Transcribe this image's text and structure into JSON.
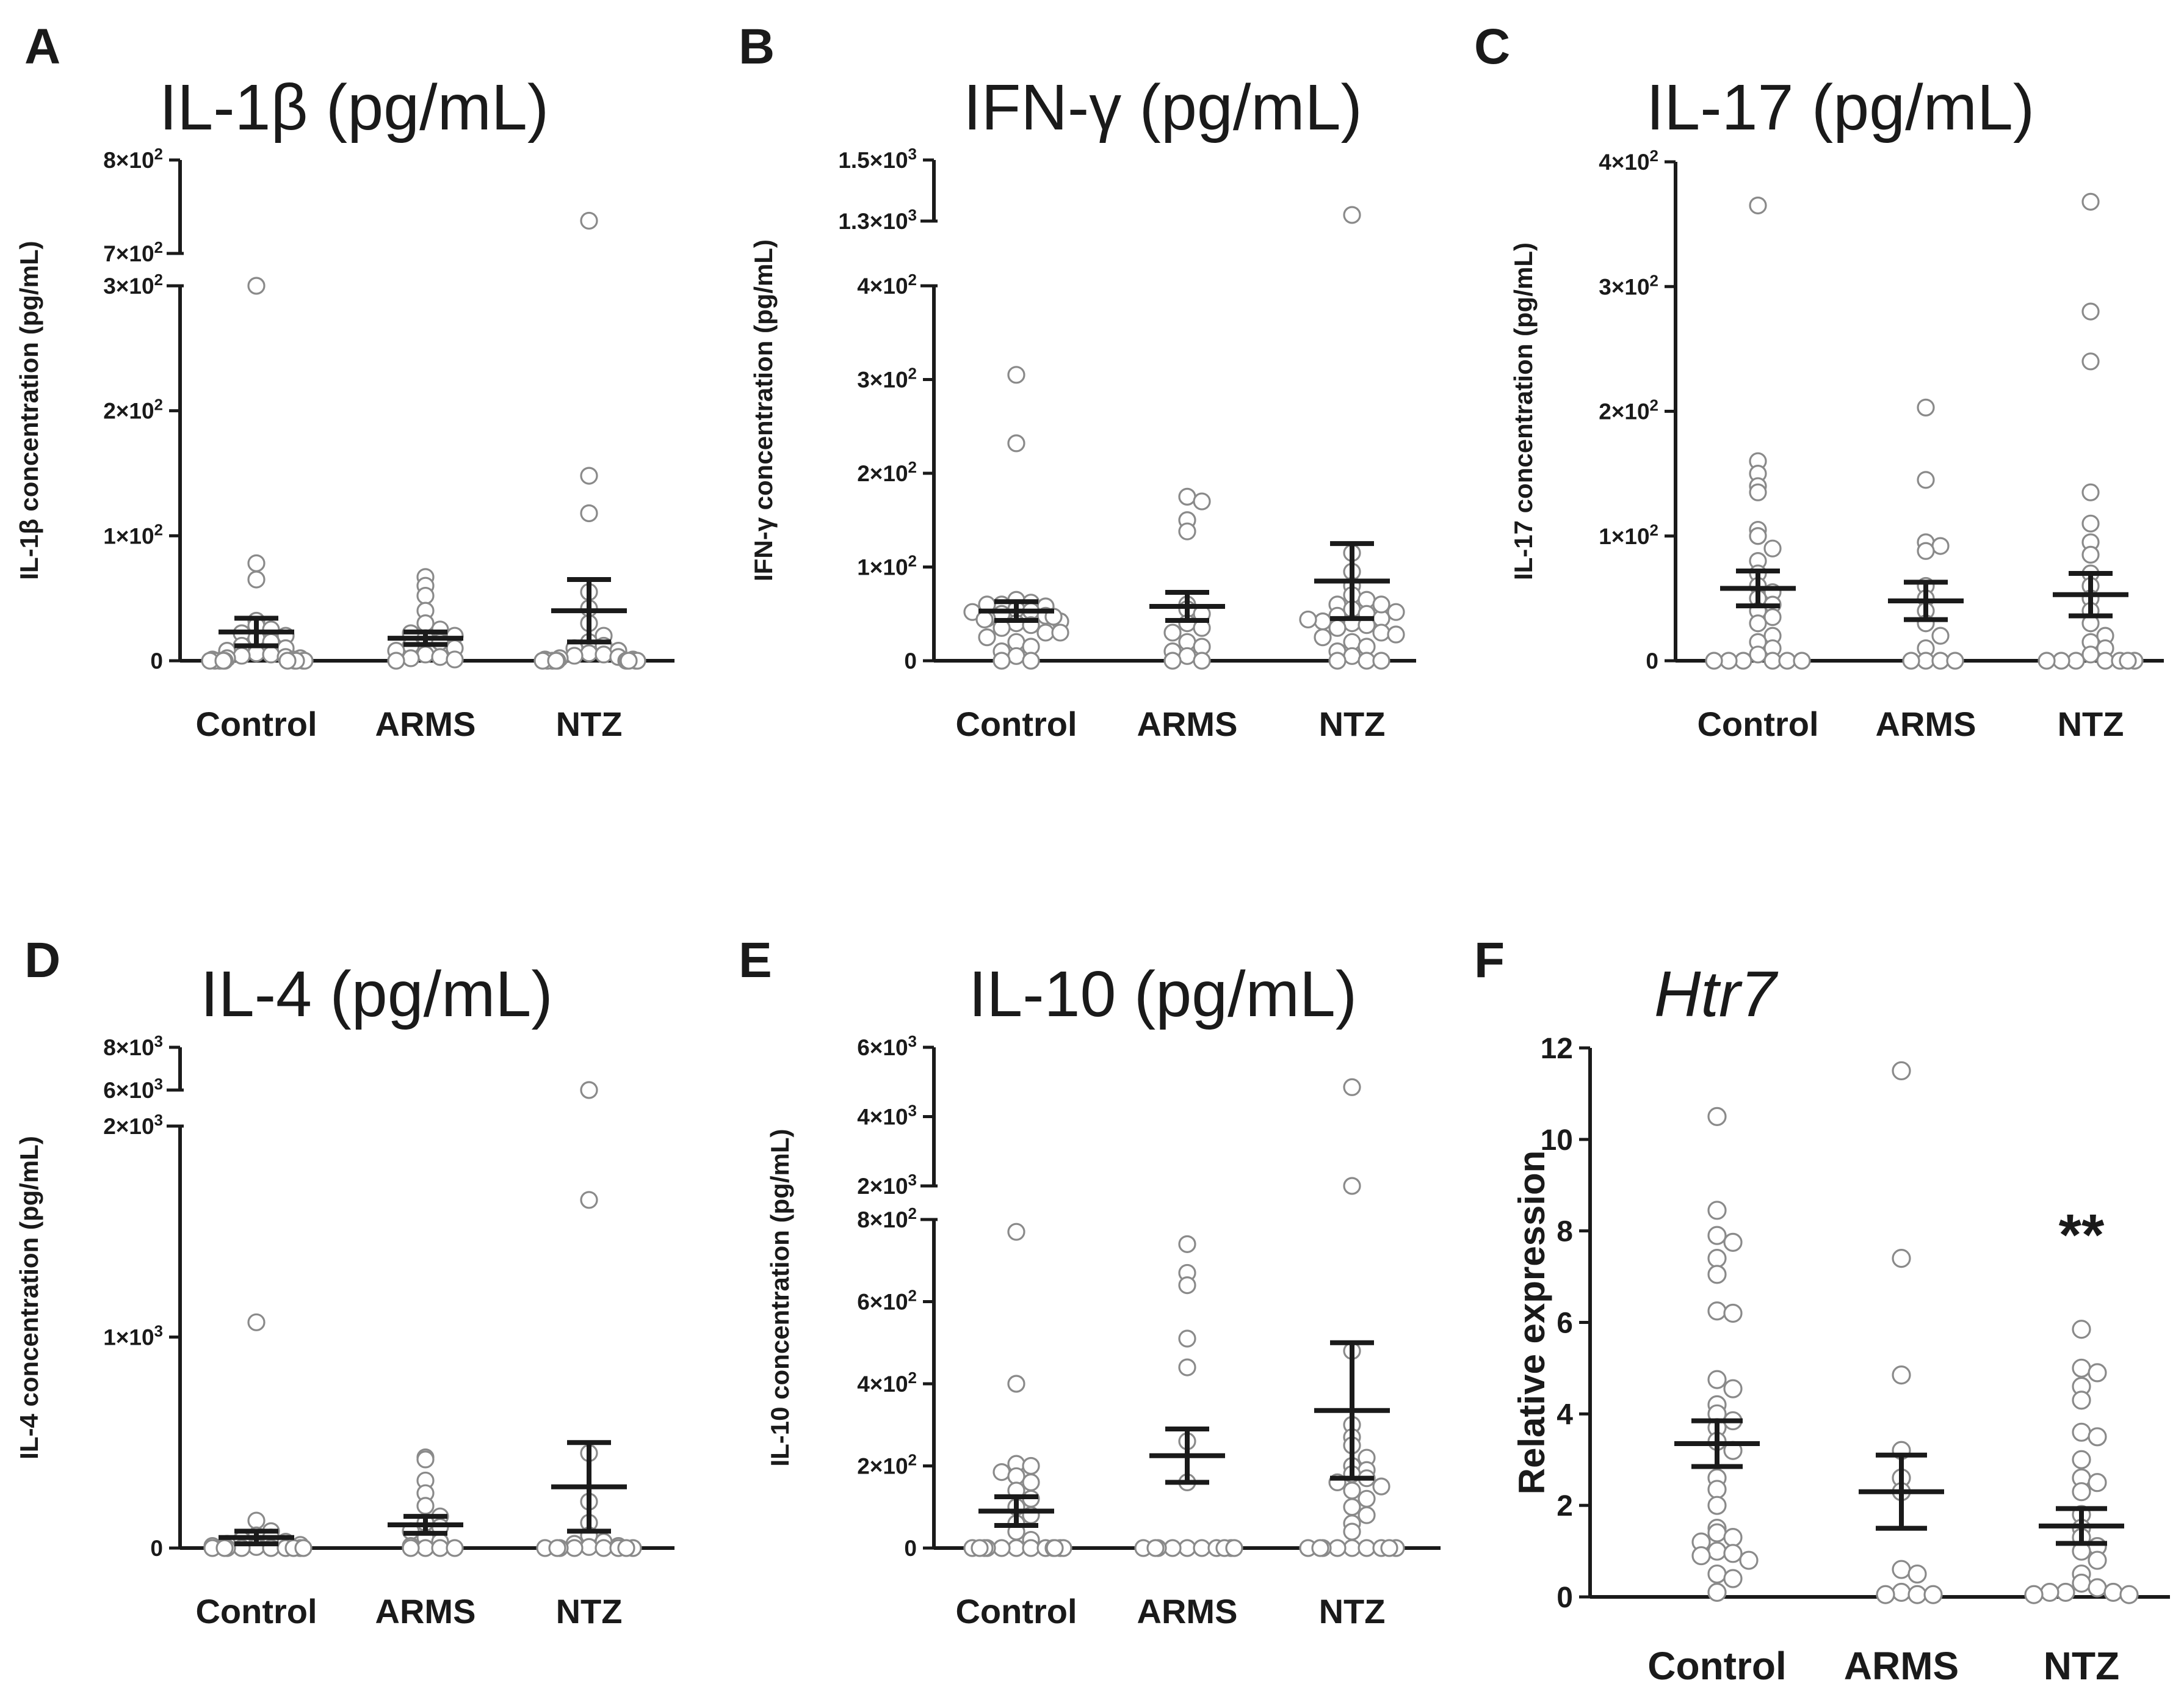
{
  "chart_data": [
    {
      "panel": "A",
      "title": "IL-1β (pg/mL)",
      "type": "scatter",
      "ylabel": "IL-1β concentration (pg/mL)",
      "categories": [
        "Control",
        "ARMS",
        "NTZ"
      ],
      "broken_axis": {
        "lower": [
          0,
          300
        ],
        "upper": [
          700,
          800
        ]
      },
      "yticks": [
        {
          "v": 0,
          "label": "0"
        },
        {
          "v": 100,
          "label": "1×10²"
        },
        {
          "v": 200,
          "label": "2×10²"
        },
        {
          "v": 300,
          "label": "3×10²"
        },
        {
          "v": 700,
          "label": "7×10²"
        },
        {
          "v": 800,
          "label": "8×10²"
        }
      ],
      "series": [
        {
          "name": "Control",
          "mean": 23,
          "sem": 11,
          "values": [
            300,
            78,
            65,
            32,
            28,
            25,
            22,
            20,
            18,
            15,
            12,
            10,
            8,
            6,
            5,
            4,
            3,
            2,
            2,
            1,
            1,
            0,
            0,
            0,
            0,
            0,
            0,
            0,
            0,
            0,
            0
          ]
        },
        {
          "name": "ARMS",
          "mean": 18,
          "sem": 5,
          "values": [
            67,
            60,
            52,
            40,
            30,
            25,
            22,
            20,
            18,
            15,
            12,
            10,
            8,
            5,
            3,
            2,
            1,
            0
          ]
        },
        {
          "name": "NTZ",
          "mean": 40,
          "sem": 25,
          "values": [
            735,
            148,
            118,
            55,
            42,
            30,
            20,
            15,
            12,
            10,
            8,
            6,
            5,
            4,
            3,
            2,
            1,
            1,
            0,
            0,
            0,
            0,
            0,
            0,
            0,
            0,
            0,
            0
          ]
        }
      ]
    },
    {
      "panel": "B",
      "title": "IFN-γ (pg/mL)",
      "type": "scatter",
      "ylabel": "IFN-γ concentration (pg/mL)",
      "categories": [
        "Control",
        "ARMS",
        "NTZ"
      ],
      "broken_axis": {
        "lower": [
          0,
          400
        ],
        "upper": [
          1300,
          1500
        ]
      },
      "yticks": [
        {
          "v": 0,
          "label": "0"
        },
        {
          "v": 100,
          "label": "1×10²"
        },
        {
          "v": 200,
          "label": "2×10²"
        },
        {
          "v": 300,
          "label": "3×10²"
        },
        {
          "v": 400,
          "label": "4×10²"
        },
        {
          "v": 1300,
          "label": "1.3×10³"
        },
        {
          "v": 1500,
          "label": "1.5×10³"
        }
      ],
      "series": [
        {
          "name": "Control",
          "mean": 53,
          "sem": 10,
          "values": [
            305,
            232,
            65,
            62,
            60,
            58,
            55,
            53,
            50,
            48,
            45,
            42,
            40,
            38,
            35,
            30,
            25,
            20,
            15,
            10,
            5,
            0,
            0,
            60,
            52,
            47,
            44,
            30
          ]
        },
        {
          "name": "ARMS",
          "mean": 58,
          "sem": 15,
          "values": [
            175,
            170,
            150,
            138,
            60,
            55,
            50,
            40,
            35,
            30,
            20,
            15,
            10,
            5,
            0,
            0
          ]
        },
        {
          "name": "NTZ",
          "mean": 85,
          "sem": 40,
          "values": [
            1320,
            115,
            95,
            80,
            70,
            65,
            60,
            55,
            50,
            48,
            45,
            42,
            40,
            38,
            35,
            30,
            25,
            20,
            15,
            10,
            5,
            0,
            0,
            0,
            60,
            52,
            44,
            28
          ]
        }
      ]
    },
    {
      "panel": "C",
      "title": "IL-17 (pg/mL)",
      "type": "scatter",
      "ylabel": "IL-17 concentration (pg/mL)",
      "categories": [
        "Control",
        "ARMS",
        "NTZ"
      ],
      "ylim": [
        0,
        400
      ],
      "yticks": [
        {
          "v": 0,
          "label": "0"
        },
        {
          "v": 100,
          "label": "1×10²"
        },
        {
          "v": 200,
          "label": "2×10²"
        },
        {
          "v": 300,
          "label": "3×10²"
        },
        {
          "v": 400,
          "label": "4×10²"
        }
      ],
      "series": [
        {
          "name": "Control",
          "mean": 58,
          "sem": 14,
          "values": [
            365,
            160,
            150,
            140,
            135,
            105,
            100,
            90,
            80,
            70,
            60,
            55,
            50,
            45,
            40,
            35,
            30,
            20,
            15,
            10,
            5,
            0,
            0,
            0,
            0,
            0,
            0
          ]
        },
        {
          "name": "ARMS",
          "mean": 48,
          "sem": 15,
          "values": [
            203,
            145,
            95,
            92,
            88,
            60,
            50,
            40,
            30,
            20,
            10,
            0,
            0,
            0,
            0
          ]
        },
        {
          "name": "NTZ",
          "mean": 53,
          "sem": 17,
          "values": [
            368,
            280,
            240,
            135,
            110,
            95,
            85,
            70,
            60,
            50,
            40,
            30,
            20,
            15,
            10,
            5,
            0,
            0,
            0,
            0,
            0,
            0,
            0
          ]
        }
      ]
    },
    {
      "panel": "D",
      "title": "IL-4 (pg/mL)",
      "type": "scatter",
      "ylabel": "IL-4 concentration (pg/mL)",
      "categories": [
        "Control",
        "ARMS",
        "NTZ"
      ],
      "broken_axis": {
        "lower": [
          0,
          2000
        ],
        "upper": [
          6000,
          8000
        ]
      },
      "yticks": [
        {
          "v": 0,
          "label": "0"
        },
        {
          "v": 1000,
          "label": "1×10³"
        },
        {
          "v": 2000,
          "label": "2×10³"
        },
        {
          "v": 6000,
          "label": "6×10³"
        },
        {
          "v": 8000,
          "label": "8×10³"
        }
      ],
      "series": [
        {
          "name": "Control",
          "mean": 50,
          "sem": 30,
          "values": [
            1070,
            130,
            80,
            60,
            50,
            40,
            30,
            20,
            15,
            10,
            5,
            0,
            0,
            0,
            0,
            0,
            0,
            0,
            0,
            0
          ]
        },
        {
          "name": "ARMS",
          "mean": 110,
          "sem": 40,
          "values": [
            430,
            420,
            320,
            260,
            200,
            150,
            120,
            100,
            80,
            50,
            30,
            10,
            0,
            0,
            0,
            0
          ]
        },
        {
          "name": "NTZ",
          "mean": 290,
          "sem": 210,
          "values": [
            6000,
            1650,
            450,
            220,
            120,
            60,
            30,
            20,
            10,
            5,
            0,
            0,
            0,
            0,
            0,
            0,
            0,
            0
          ]
        }
      ]
    },
    {
      "panel": "E",
      "title": "IL-10 (pg/mL)",
      "type": "scatter",
      "ylabel": "IL-10 concentration (pg/mL)",
      "categories": [
        "Control",
        "ARMS",
        "NTZ"
      ],
      "broken_axis": {
        "lower": [
          0,
          800
        ],
        "upper": [
          2000,
          6000
        ]
      },
      "yticks": [
        {
          "v": 0,
          "label": "0"
        },
        {
          "v": 200,
          "label": "2×10²"
        },
        {
          "v": 400,
          "label": "4×10²"
        },
        {
          "v": 600,
          "label": "6×10²"
        },
        {
          "v": 800,
          "label": "8×10²"
        },
        {
          "v": 2000,
          "label": "2×10³"
        },
        {
          "v": 4000,
          "label": "4×10³"
        },
        {
          "v": 6000,
          "label": "6×10³"
        }
      ],
      "series": [
        {
          "name": "Control",
          "mean": 90,
          "sem": 35,
          "values": [
            770,
            400,
            205,
            200,
            185,
            175,
            160,
            140,
            120,
            100,
            80,
            60,
            40,
            20,
            0,
            0,
            0,
            0,
            0,
            0,
            0,
            0,
            0,
            0,
            0,
            0
          ]
        },
        {
          "name": "ARMS",
          "mean": 225,
          "sem": 65,
          "values": [
            740,
            670,
            640,
            510,
            440,
            260,
            160,
            0,
            0,
            0,
            0,
            0,
            0,
            0,
            0,
            0,
            0
          ]
        },
        {
          "name": "NTZ",
          "mean": 335,
          "sem": 165,
          "values": [
            4850,
            2000,
            480,
            300,
            270,
            250,
            220,
            200,
            190,
            180,
            170,
            160,
            150,
            140,
            120,
            100,
            80,
            60,
            40,
            0,
            0,
            0,
            0,
            0,
            0,
            0,
            0,
            0
          ]
        }
      ]
    },
    {
      "panel": "F",
      "title": "Htr7",
      "type": "scatter",
      "ylabel": "Relative expression",
      "categories": [
        "Control",
        "ARMS",
        "NTZ"
      ],
      "ylim": [
        0,
        12
      ],
      "yticks": [
        {
          "v": 0,
          "label": "0"
        },
        {
          "v": 2,
          "label": "2"
        },
        {
          "v": 4,
          "label": "4"
        },
        {
          "v": 6,
          "label": "6"
        },
        {
          "v": 8,
          "label": "8"
        },
        {
          "v": 10,
          "label": "10"
        },
        {
          "v": 12,
          "label": "12"
        }
      ],
      "annotation": "**",
      "series": [
        {
          "name": "Control",
          "mean": 3.35,
          "sem": 0.5,
          "values": [
            10.5,
            8.45,
            7.9,
            7.75,
            7.4,
            7.05,
            6.25,
            6.2,
            4.75,
            4.55,
            4.2,
            4.0,
            3.85,
            3.7,
            3.4,
            3.2,
            2.6,
            2.35,
            2.0,
            1.5,
            1.4,
            1.3,
            1.2,
            1.0,
            0.95,
            0.9,
            0.8,
            0.5,
            0.4,
            0.1
          ]
        },
        {
          "name": "ARMS",
          "mean": 2.3,
          "sem": 0.8,
          "values": [
            11.5,
            7.4,
            4.85,
            3.2,
            2.6,
            2.3,
            0.6,
            0.5,
            0.1,
            0.05,
            0.05,
            0.05
          ]
        },
        {
          "name": "NTZ",
          "mean": 1.55,
          "sem": 0.38,
          "values": [
            5.85,
            5.0,
            4.9,
            4.6,
            4.3,
            3.6,
            3.5,
            3.0,
            2.6,
            2.5,
            2.3,
            1.8,
            1.5,
            1.3,
            1.1,
            1.0,
            0.8,
            0.5,
            0.3,
            0.2,
            0.1,
            0.1,
            0.1,
            0.05,
            0.05
          ]
        }
      ]
    }
  ]
}
